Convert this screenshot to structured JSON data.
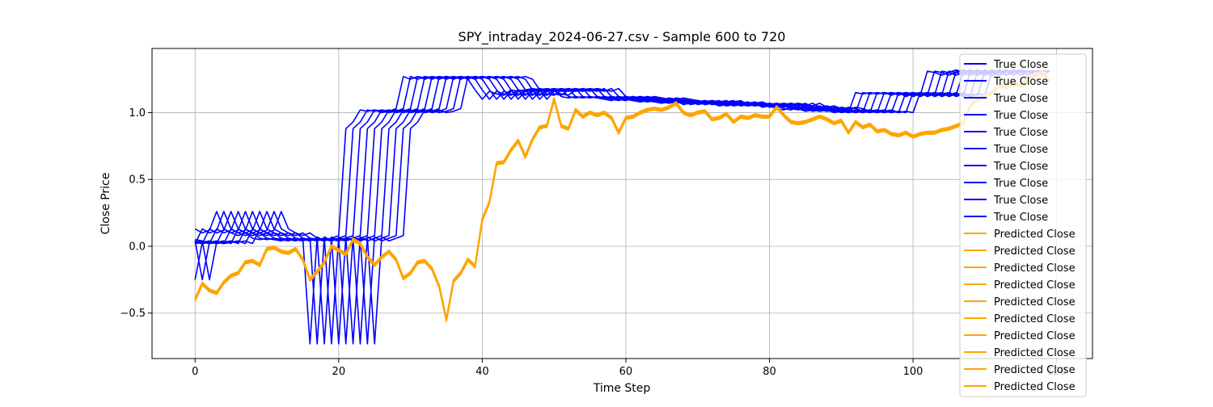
{
  "chart_data": {
    "type": "line",
    "title": "SPY_intraday_2024-06-27.csv - Sample 600 to 720",
    "xlabel": "Time Step",
    "ylabel": "Close Price",
    "xlim": [
      -6,
      125
    ],
    "ylim": [
      -0.84,
      1.48
    ],
    "xticks": [
      0,
      20,
      40,
      60,
      80,
      100,
      120
    ],
    "yticks": [
      -0.5,
      0.0,
      0.5,
      1.0
    ],
    "xtick_labels": [
      "0",
      "20",
      "40",
      "60",
      "80",
      "100",
      "120"
    ],
    "ytick_labels": [
      "−0.5",
      "0.0",
      "0.5",
      "1.0"
    ],
    "grid": true,
    "legend_location": "upper right",
    "true_color": "#0000ff",
    "pred_color": "#ffa500",
    "true_label": "True Close",
    "pred_label": "Predicted Close",
    "window_length": 10,
    "num_windows": 10,
    "true_close": [
      0.05,
      0.04,
      -0.25,
      0.03,
      0.02,
      0.03,
      0.03,
      0.04,
      0.02,
      0.13,
      0.1,
      0.12,
      0.26,
      0.13,
      0.1,
      0.08,
      0.1,
      0.06,
      0.05,
      0.06,
      0.05,
      0.04,
      0.06,
      0.05,
      0.06,
      -0.73,
      0.07,
      0.04,
      0.06,
      0.08,
      0.88,
      0.93,
      1.02,
      1.01,
      1.02,
      1.0,
      1.01,
      1.03,
      1.27,
      1.25,
      1.27,
      1.26,
      1.27,
      1.26,
      1.27,
      1.26,
      1.27,
      1.25,
      1.17,
      1.1,
      1.16,
      1.14,
      1.13,
      1.17,
      1.16,
      1.17,
      1.18,
      1.17,
      1.16,
      1.18,
      1.12,
      1.11,
      1.12,
      1.11,
      1.12,
      1.11,
      1.1,
      1.09,
      1.11,
      1.1,
      1.09,
      1.08,
      1.09,
      1.08,
      1.07,
      1.08,
      1.09,
      1.06,
      1.07,
      1.08,
      1.06,
      1.07,
      1.05,
      1.06,
      1.07,
      1.06,
      1.05,
      1.07,
      1.04,
      1.05,
      1.03,
      1.02,
      1.04,
      1.03,
      1.01,
      1.02,
      1.01,
      1.02,
      1.0,
      1.01,
      1.0,
      1.15,
      1.14,
      1.15,
      1.14,
      1.15,
      1.13,
      1.15,
      1.12,
      1.14,
      1.13,
      1.31,
      1.3,
      1.28,
      1.3,
      1.32,
      1.3,
      1.31,
      1.28,
      1.31
    ],
    "predicted_close": [
      -0.4,
      -0.28,
      -0.33,
      -0.35,
      -0.27,
      -0.22,
      -0.2,
      -0.12,
      -0.11,
      -0.14,
      -0.02,
      -0.01,
      -0.04,
      -0.05,
      -0.02,
      -0.1,
      -0.25,
      -0.19,
      -0.12,
      0.0,
      -0.03,
      -0.06,
      0.05,
      0.02,
      -0.08,
      -0.14,
      -0.08,
      -0.04,
      -0.1,
      -0.24,
      -0.2,
      -0.12,
      -0.11,
      -0.17,
      -0.3,
      -0.55,
      -0.26,
      -0.2,
      -0.1,
      -0.15,
      0.2,
      0.33,
      0.62,
      0.63,
      0.72,
      0.79,
      0.67,
      0.8,
      0.89,
      0.9,
      1.1,
      0.9,
      0.88,
      1.02,
      0.97,
      1.0,
      0.98,
      1.0,
      0.96,
      0.85,
      0.96,
      0.97,
      1.0,
      1.02,
      1.03,
      1.02,
      1.04,
      1.07,
      1.0,
      0.98,
      1.0,
      1.01,
      0.95,
      0.96,
      0.99,
      0.93,
      0.97,
      0.96,
      0.98,
      0.97,
      0.97,
      1.04,
      0.98,
      0.93,
      0.92,
      0.93,
      0.95,
      0.97,
      0.95,
      0.92,
      0.94,
      0.85,
      0.93,
      0.89,
      0.91,
      0.86,
      0.87,
      0.84,
      0.83,
      0.85,
      0.82,
      0.84,
      0.85,
      0.85,
      0.87,
      0.88,
      0.9,
      0.92,
      1.05,
      1.1,
      1.12,
      1.15,
      1.2,
      1.19,
      1.22,
      1.2,
      1.25,
      1.28,
      1.3,
      1.24
    ]
  }
}
